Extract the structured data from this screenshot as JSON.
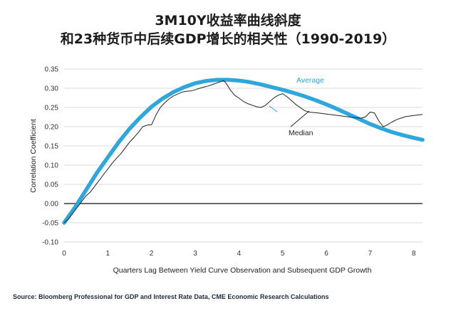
{
  "title_line1": "3M10Y收益率曲线斜度",
  "title_line2": "和23种货币中后续GDP增长的相关性（1990-2019）",
  "source": "Source: Bloomberg Professional for GDP and Interest Rate Data, CME Economic Research Calculations",
  "colors": {
    "average": "#2ea7dc",
    "median": "#222222",
    "grid": "#cfcfcf",
    "zero": "#111111"
  },
  "chart_data": {
    "type": "line",
    "title": "3M10Y收益率曲线斜度 和23种货币中后续GDP增长的相关性（1990-2019）",
    "xlabel": "Quarters Lag Between Yield Curve Observation and Subsequent GDP Growth",
    "ylabel": "Correlation Coefficient",
    "xlim": [
      0,
      8.2
    ],
    "ylim": [
      -0.1,
      0.35
    ],
    "xticks": [
      "0",
      "1",
      "2",
      "3",
      "4",
      "5",
      "6",
      "7",
      "8"
    ],
    "yticks": [
      "0.35",
      "0.30",
      "0.25",
      "0.20",
      "0.15",
      "0.10",
      "0.05",
      "0.00",
      "-0.05",
      "-0.10"
    ],
    "grid": true,
    "series": [
      {
        "name": "Average",
        "x": [
          0,
          0.25,
          0.5,
          0.75,
          1,
          1.25,
          1.5,
          1.75,
          2,
          2.25,
          2.5,
          2.75,
          3,
          3.25,
          3.5,
          3.75,
          4,
          4.25,
          4.5,
          4.75,
          5,
          5.25,
          5.5,
          5.75,
          6,
          6.25,
          6.5,
          6.75,
          7,
          7.25,
          7.5,
          7.75,
          8,
          8.2
        ],
        "y": [
          -0.05,
          -0.01,
          0.035,
          0.08,
          0.12,
          0.16,
          0.195,
          0.225,
          0.252,
          0.273,
          0.29,
          0.303,
          0.313,
          0.319,
          0.322,
          0.322,
          0.32,
          0.316,
          0.31,
          0.303,
          0.296,
          0.288,
          0.279,
          0.269,
          0.258,
          0.246,
          0.233,
          0.22,
          0.207,
          0.196,
          0.186,
          0.178,
          0.171,
          0.166
        ]
      },
      {
        "name": "Median",
        "x": [
          0,
          0.1,
          0.2,
          0.3,
          0.4,
          0.5,
          0.6,
          0.7,
          0.8,
          0.9,
          1,
          1.1,
          1.2,
          1.3,
          1.4,
          1.5,
          1.6,
          1.7,
          1.8,
          1.9,
          2,
          2.1,
          2.2,
          2.3,
          2.4,
          2.5,
          2.6,
          2.7,
          2.8,
          2.9,
          3,
          3.1,
          3.2,
          3.3,
          3.4,
          3.5,
          3.6,
          3.65,
          3.7,
          3.8,
          3.9,
          4,
          4.1,
          4.2,
          4.3,
          4.4,
          4.5,
          4.6,
          4.7,
          4.8,
          4.9,
          5,
          5.1,
          5.2,
          5.3,
          5.4,
          5.5,
          5.6,
          5.8,
          6,
          6.2,
          6.4,
          6.6,
          6.8,
          6.9,
          7,
          7.1,
          7.2,
          7.3,
          7.4,
          7.5,
          7.6,
          7.7,
          7.8,
          8,
          8.2
        ],
        "y": [
          -0.05,
          -0.04,
          -0.025,
          -0.01,
          0.005,
          0.02,
          0.03,
          0.045,
          0.06,
          0.075,
          0.09,
          0.105,
          0.118,
          0.13,
          0.145,
          0.16,
          0.172,
          0.185,
          0.2,
          0.204,
          0.205,
          0.23,
          0.25,
          0.262,
          0.272,
          0.28,
          0.285,
          0.29,
          0.292,
          0.293,
          0.296,
          0.3,
          0.303,
          0.306,
          0.31,
          0.314,
          0.318,
          0.32,
          0.314,
          0.296,
          0.282,
          0.274,
          0.266,
          0.26,
          0.256,
          0.252,
          0.25,
          0.255,
          0.265,
          0.275,
          0.282,
          0.286,
          0.278,
          0.268,
          0.258,
          0.25,
          0.242,
          0.238,
          0.236,
          0.233,
          0.23,
          0.227,
          0.224,
          0.222,
          0.226,
          0.238,
          0.236,
          0.215,
          0.2,
          0.205,
          0.212,
          0.218,
          0.222,
          0.226,
          0.229,
          0.232
        ]
      }
    ],
    "annotations": [
      {
        "text": "Average",
        "series": "Average"
      },
      {
        "text": "Median",
        "series": "Median"
      }
    ]
  }
}
